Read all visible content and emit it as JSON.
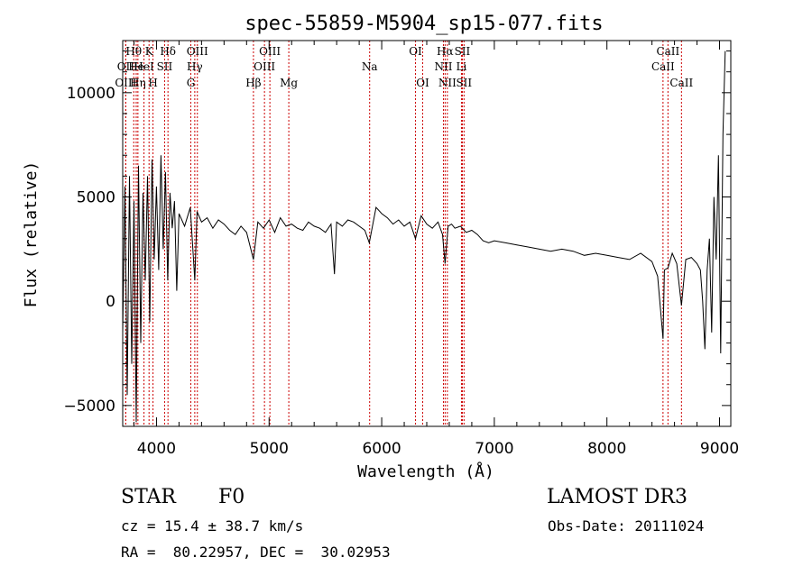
{
  "chart_data": {
    "type": "line",
    "title": "spec-55859-M5904_sp15-077.fits",
    "xlabel": "Wavelength (Å)",
    "ylabel": "Flux (relative)",
    "xlim": [
      3700,
      9100
    ],
    "ylim": [
      -6000,
      12500
    ],
    "x_ticks": [
      4000,
      5000,
      6000,
      7000,
      8000,
      9000
    ],
    "x_tick_labels": [
      "4000",
      "5000",
      "6000",
      "7000",
      "8000",
      "9000"
    ],
    "y_ticks": [
      -5000,
      0,
      5000,
      10000
    ],
    "y_tick_labels": [
      "−5000",
      "0",
      "5000",
      "10000"
    ],
    "grid": false,
    "series": [
      {
        "name": "flux",
        "x": [
          3700,
          3720,
          3740,
          3760,
          3780,
          3800,
          3820,
          3840,
          3860,
          3880,
          3900,
          3920,
          3940,
          3960,
          3980,
          4000,
          4020,
          4040,
          4060,
          4080,
          4100,
          4120,
          4140,
          4160,
          4180,
          4200,
          4250,
          4300,
          4340,
          4360,
          4400,
          4450,
          4500,
          4550,
          4600,
          4650,
          4700,
          4750,
          4800,
          4861,
          4900,
          4950,
          5000,
          5050,
          5100,
          5150,
          5200,
          5250,
          5300,
          5350,
          5400,
          5450,
          5500,
          5550,
          5580,
          5600,
          5650,
          5700,
          5750,
          5800,
          5850,
          5890,
          5950,
          6000,
          6050,
          6100,
          6150,
          6200,
          6250,
          6300,
          6350,
          6400,
          6450,
          6500,
          6540,
          6563,
          6590,
          6620,
          6650,
          6700,
          6750,
          6800,
          6850,
          6900,
          6950,
          7000,
          7100,
          7200,
          7300,
          7400,
          7500,
          7600,
          7700,
          7800,
          7900,
          8000,
          8100,
          8200,
          8300,
          8400,
          8450,
          8498,
          8510,
          8542,
          8580,
          8620,
          8662,
          8700,
          8750,
          8800,
          8830,
          8850,
          8870,
          8890,
          8910,
          8930,
          8950,
          8970,
          8990,
          9010,
          9030,
          9050
        ],
        "y": [
          -1500,
          5500,
          -4500,
          6000,
          -3000,
          4800,
          -5800,
          6500,
          -2000,
          5200,
          1000,
          6000,
          -1000,
          6800,
          2000,
          5500,
          1500,
          7000,
          2500,
          6200,
          1000,
          5200,
          3500,
          4800,
          500,
          4200,
          3600,
          4500,
          1000,
          4300,
          3800,
          4000,
          3500,
          3900,
          3700,
          3400,
          3200,
          3600,
          3300,
          2000,
          3800,
          3500,
          3900,
          3300,
          4000,
          3600,
          3700,
          3500,
          3400,
          3800,
          3600,
          3500,
          3300,
          3700,
          1300,
          3800,
          3600,
          3900,
          3800,
          3600,
          3400,
          2800,
          4500,
          4200,
          4000,
          3700,
          3900,
          3600,
          3800,
          3000,
          4100,
          3700,
          3500,
          3800,
          3200,
          1800,
          3600,
          3700,
          3500,
          3600,
          3300,
          3400,
          3200,
          2900,
          2800,
          2900,
          2800,
          2700,
          2600,
          2500,
          2400,
          2500,
          2400,
          2200,
          2300,
          2200,
          2100,
          2000,
          2300,
          1900,
          1200,
          -1800,
          1500,
          1600,
          2300,
          1800,
          -200,
          2000,
          2100,
          1800,
          1500,
          0,
          -2300,
          1500,
          3000,
          -1500,
          5000,
          2000,
          7000,
          -2500,
          8000,
          12000
        ]
      }
    ],
    "lines": [
      {
        "name": "Hθ",
        "wave": 3798,
        "row": 1
      },
      {
        "name": "OII",
        "wave": 3727,
        "row": 2
      },
      {
        "name": "OIII",
        "wave": 3727,
        "row": 3
      },
      {
        "name": "He",
        "wave": 3820,
        "row": 2
      },
      {
        "name": "Hη",
        "wave": 3835,
        "row": 3
      },
      {
        "name": "K",
        "wave": 3934,
        "row": 1
      },
      {
        "name": "HeI",
        "wave": 3889,
        "row": 2
      },
      {
        "name": "H",
        "wave": 3969,
        "row": 3
      },
      {
        "name": "Hδ",
        "wave": 4102,
        "row": 1
      },
      {
        "name": "SII",
        "wave": 4072,
        "row": 2
      },
      {
        "name": "OIII",
        "wave": 4363,
        "row": 1
      },
      {
        "name": "Hγ",
        "wave": 4340,
        "row": 2
      },
      {
        "name": "G",
        "wave": 4305,
        "row": 3
      },
      {
        "name": "Hβ",
        "wave": 4861,
        "row": 3
      },
      {
        "name": "OIII",
        "wave": 4959,
        "row": 2
      },
      {
        "name": "OIII",
        "wave": 5007,
        "row": 1
      },
      {
        "name": "Mg",
        "wave": 5175,
        "row": 3
      },
      {
        "name": "Na",
        "wave": 5893,
        "row": 2
      },
      {
        "name": "OI",
        "wave": 6300,
        "row": 1
      },
      {
        "name": "OI",
        "wave": 6364,
        "row": 3
      },
      {
        "name": "Hα",
        "wave": 6563,
        "row": 1
      },
      {
        "name": "NII",
        "wave": 6548,
        "row": 2
      },
      {
        "name": "NII",
        "wave": 6583,
        "row": 3
      },
      {
        "name": "SII",
        "wave": 6716,
        "row": 1
      },
      {
        "name": "Li",
        "wave": 6708,
        "row": 2
      },
      {
        "name": "SII",
        "wave": 6731,
        "row": 3
      },
      {
        "name": "CaII",
        "wave": 8542,
        "row": 1
      },
      {
        "name": "CaII",
        "wave": 8498,
        "row": 2
      },
      {
        "name": "CaII",
        "wave": 8662,
        "row": 3
      }
    ]
  },
  "info": {
    "class": "STAR",
    "subclass": "F0",
    "survey": "LAMOST DR3",
    "cz": "cz = 15.4 ± 38.7 km/s",
    "obs_date": "Obs-Date: 20111024",
    "radec": "RA =  80.22957, DEC =  30.02953"
  },
  "colors": {
    "line": "#000000",
    "marker": "#cc0000"
  }
}
